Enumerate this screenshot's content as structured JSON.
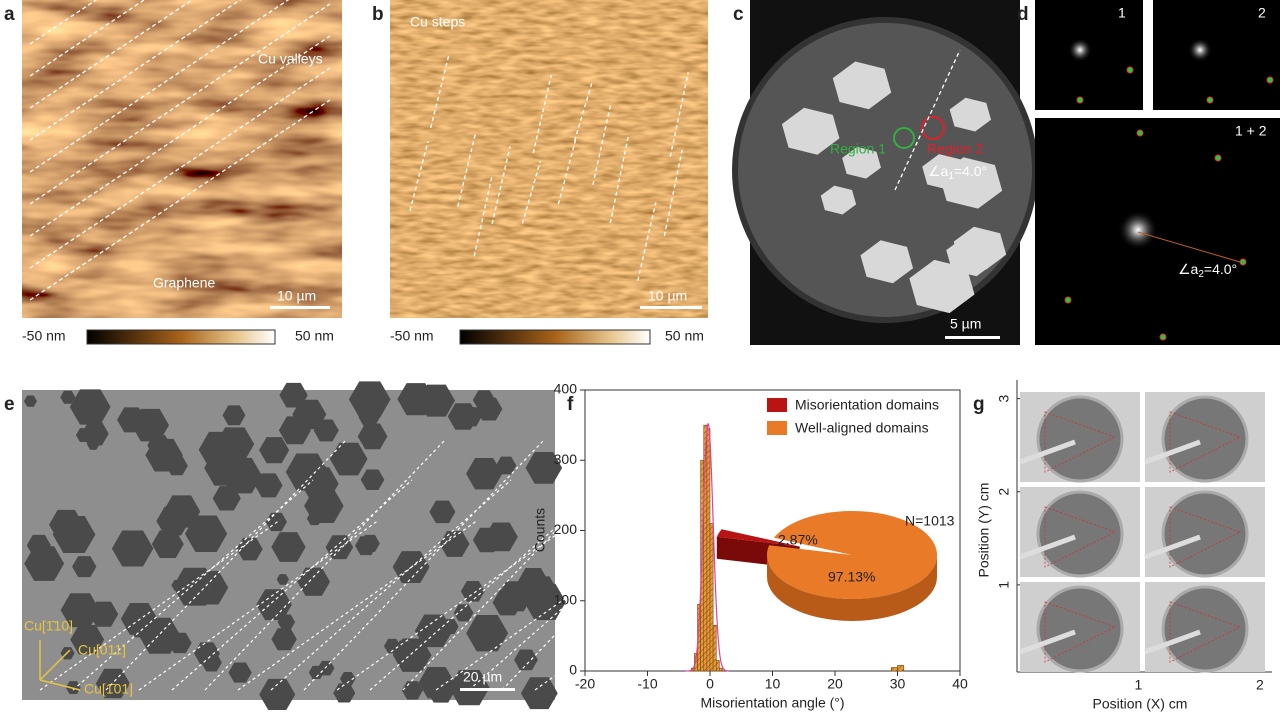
{
  "panels": {
    "a": {
      "label": "a",
      "annotations": [
        "Cu valleys",
        "Graphene"
      ],
      "scalebar": "10 µm",
      "colorbar": [
        "-50 nm",
        "50 nm"
      ]
    },
    "b": {
      "label": "b",
      "annotations": [
        "Cu steps"
      ],
      "scalebar": "10 µm",
      "colorbar": [
        "-50 nm",
        "50 nm"
      ]
    },
    "c": {
      "label": "c",
      "annotations": [
        "Region 1",
        "Region 2"
      ],
      "angle": [
        "∠a",
        "1",
        "=4.0°"
      ],
      "scalebar": "5 µm"
    },
    "d": {
      "label": "d",
      "subpanels": [
        "1",
        "2",
        "1 + 2"
      ],
      "angle": [
        "∠a",
        "2",
        "=4.0°"
      ]
    },
    "e": {
      "label": "e",
      "directions": [
        "Cu[1̄10]",
        "Cu[011]",
        "Cu[1̄01]"
      ],
      "scalebar": "20 µm"
    },
    "f": {
      "label": "f"
    },
    "g": {
      "label": "g"
    }
  },
  "chart_data": [
    {
      "type": "histogram",
      "xlabel": "Misorientation angle (°)",
      "ylabel": "Counts",
      "xlim": [
        -20,
        40
      ],
      "ylim": [
        0,
        400
      ],
      "xticks": [
        -20,
        -10,
        0,
        10,
        20,
        30,
        40
      ],
      "yticks": [
        0,
        100,
        200,
        300,
        400
      ],
      "series": [
        {
          "color": "#e89a3a",
          "bins": [
            -3,
            -2.5,
            -2,
            -1.5,
            -1,
            -0.5,
            0,
            0.5,
            1,
            1.5,
            2
          ],
          "counts": [
            4,
            25,
            95,
            300,
            350,
            345,
            210,
            65,
            15,
            4
          ]
        },
        {
          "color": "#e89a3a",
          "bins": [
            29,
            30,
            31
          ],
          "counts": [
            5,
            8
          ]
        }
      ],
      "fit": {
        "color": "#e0409a",
        "mean": -0.3,
        "sigma": 0.8,
        "peak": 352
      },
      "pie": {
        "categories": [
          "Misorientation domains",
          "Well-aligned domains"
        ],
        "values": [
          2.87,
          97.13
        ],
        "value_labels": [
          "2.87%",
          "97.13%"
        ],
        "colors": [
          "#b81414",
          "#e87a28"
        ],
        "note": "N=1013"
      }
    },
    {
      "type": "image-grid",
      "xlabel": "Position (X) cm",
      "ylabel": "Position (Y) cm",
      "xlim": [
        0,
        2.1
      ],
      "ylim": [
        0,
        3.2
      ],
      "xticks": [
        1,
        2
      ],
      "yticks": [
        1,
        2,
        3
      ],
      "rows": 3,
      "cols": 2
    }
  ]
}
